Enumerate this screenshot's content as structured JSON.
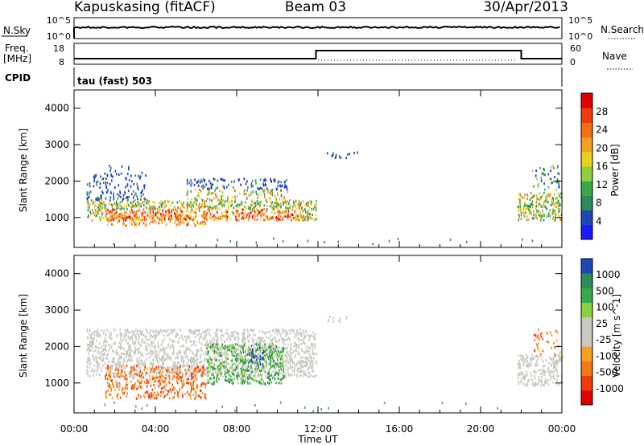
{
  "header": {
    "radar": "Kapuskasing (fitACF)",
    "beam": "Beam 03",
    "date": "30/Apr/2013"
  },
  "panels": {
    "noise": {
      "left_label": "N.Sky",
      "left_ticks": [
        "10^5",
        "10^0"
      ],
      "right_label": "N.Search",
      "right_ticks": [
        "10^5",
        "10^0"
      ]
    },
    "freq": {
      "left_label_1": "Freq.",
      "left_label_2": "[MHz]",
      "left_ticks": [
        "18",
        "8"
      ],
      "right_label": "Nave",
      "right_ticks": [
        "60",
        "0"
      ]
    },
    "cpid": {
      "label": "CPID",
      "text": "tau (fast) 503"
    }
  },
  "colors": {
    "power_scale": [
      "#1a1aff",
      "#1f48b4",
      "#2e8b57",
      "#3aa84a",
      "#8cd23c",
      "#e6d21e",
      "#f5a01e",
      "#f56e14",
      "#f03c0a",
      "#e10000"
    ],
    "velocity_scale": [
      "#e10000",
      "#f03c0a",
      "#f57814",
      "#f5a01e",
      "#c8c8c0",
      "#c8c8c0",
      "#8cd23c",
      "#3aa84a",
      "#2e8b57",
      "#1f48b4"
    ]
  },
  "chart_data": [
    {
      "type": "heatmap",
      "name": "power",
      "ylabel": "Slant Range [km]",
      "xlabel": "Time UT",
      "x_ticks": [
        "00:00",
        "04:00",
        "08:00",
        "12:00",
        "16:00",
        "20:00",
        "00:00"
      ],
      "x_range_hours": [
        0,
        24
      ],
      "ylim": [
        180,
        4500
      ],
      "y_ticks": [
        1000,
        2000,
        3000,
        4000
      ],
      "colorbar": {
        "label": "Power [dB]",
        "ticks": [
          "4",
          "8",
          "12",
          "16",
          "20",
          "24",
          "28"
        ],
        "range": [
          0,
          30
        ]
      },
      "scatter_regions": [
        {
          "t": [
            0.5,
            11.9
          ],
          "r": [
            800,
            2200
          ],
          "value": "mixed 4-28 dB"
        },
        {
          "t": [
            21.8,
            24.0
          ],
          "r": [
            900,
            2500
          ],
          "value": "mixed 4-28 dB"
        },
        {
          "t": [
            12.3,
            14.0
          ],
          "r": [
            2600,
            2850
          ],
          "value": "4-8 dB"
        }
      ]
    },
    {
      "type": "heatmap",
      "name": "velocity",
      "ylabel": "Slant Range [km]",
      "xlabel": "Time UT",
      "x_ticks": [
        "00:00",
        "04:00",
        "08:00",
        "12:00",
        "16:00",
        "20:00",
        "00:00"
      ],
      "x_range_hours": [
        0,
        24
      ],
      "ylim": [
        180,
        4500
      ],
      "y_ticks": [
        1000,
        2000,
        3000,
        4000
      ],
      "colorbar": {
        "label": "Velocity [m s^-1]",
        "ticks": [
          "-1000",
          "-500",
          "-100",
          "-25",
          "25",
          "100",
          "500",
          "1000"
        ],
        "range": [
          -1000,
          1000
        ]
      },
      "scatter_regions": [
        {
          "t": [
            0.5,
            12.0
          ],
          "r": [
            1100,
            2500
          ],
          "value": "-25 to 25 m/s (ground scatter)"
        },
        {
          "t": [
            1.0,
            6.5
          ],
          "r": [
            550,
            1500
          ],
          "value": "-500 to -100 m/s"
        },
        {
          "t": [
            6.5,
            10.5
          ],
          "r": [
            1000,
            2200
          ],
          "value": "100 to 500 m/s"
        },
        {
          "t": [
            21.8,
            24.0
          ],
          "r": [
            900,
            2500
          ],
          "value": "-25 to 25 m/s"
        }
      ]
    }
  ]
}
